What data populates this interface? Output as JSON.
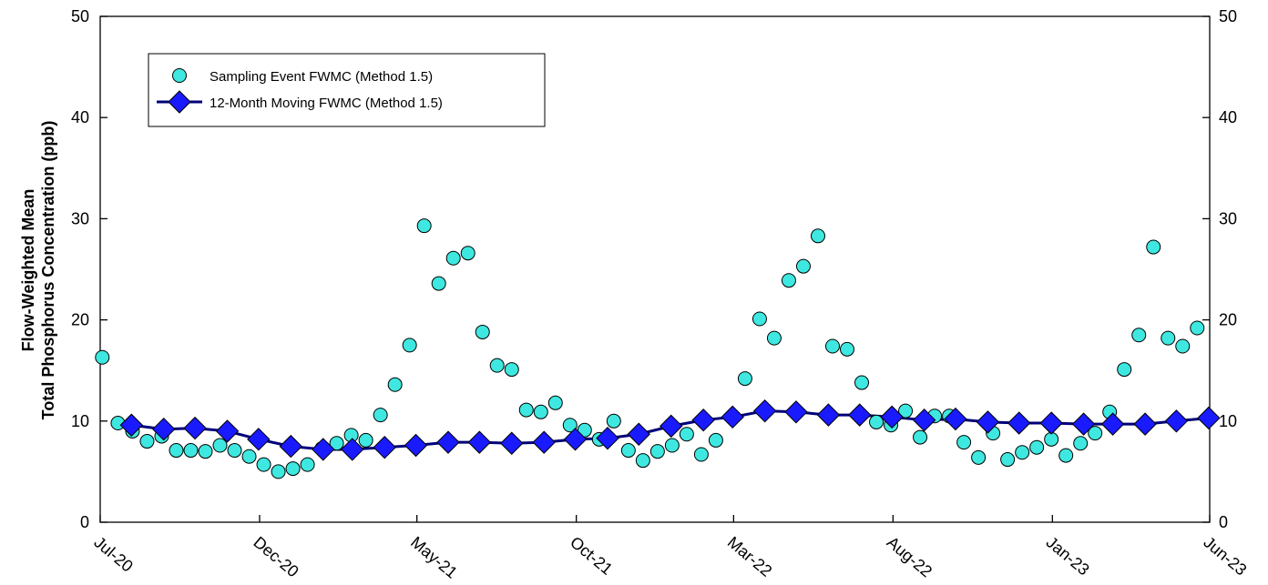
{
  "chart_data": {
    "type": "scatter",
    "title": "",
    "xlabel": "",
    "ylabel_lines": [
      "Flow-Weighted Mean",
      "Total Phosphorus Concentration (ppb)"
    ],
    "ylim": [
      0,
      50
    ],
    "yticks": [
      0,
      10,
      20,
      30,
      40,
      50
    ],
    "xlim": [
      "2020-07-01",
      "2023-06-01"
    ],
    "xticks": [
      {
        "date": "2020-07-01",
        "label": "Jul-20"
      },
      {
        "date": "2020-12-01",
        "label": "Dec-20"
      },
      {
        "date": "2021-05-01",
        "label": "May-21"
      },
      {
        "date": "2021-10-01",
        "label": "Oct-21"
      },
      {
        "date": "2022-03-01",
        "label": "Mar-22"
      },
      {
        "date": "2022-08-01",
        "label": "Aug-22"
      },
      {
        "date": "2023-01-01",
        "label": "Jan-23"
      },
      {
        "date": "2023-06-01",
        "label": "Jun-23"
      }
    ],
    "right_axis_mirrored": true,
    "grid": false,
    "legend_position": "top-left",
    "series": [
      {
        "name": "Sampling Event FWMC (Method 1.5)",
        "style": "markers",
        "marker": "circle",
        "color": "#3ee8e0",
        "points": [
          [
            "2020-07-03",
            16.3
          ],
          [
            "2020-07-18",
            9.8
          ],
          [
            "2020-08-01",
            9.0
          ],
          [
            "2020-08-15",
            8.0
          ],
          [
            "2020-08-29",
            8.5
          ],
          [
            "2020-09-12",
            7.1
          ],
          [
            "2020-09-26",
            7.1
          ],
          [
            "2020-10-10",
            7.0
          ],
          [
            "2020-10-24",
            7.6
          ],
          [
            "2020-11-07",
            7.1
          ],
          [
            "2020-11-21",
            6.5
          ],
          [
            "2020-12-05",
            5.7
          ],
          [
            "2020-12-19",
            5.0
          ],
          [
            "2021-01-02",
            5.3
          ],
          [
            "2021-01-16",
            5.7
          ],
          [
            "2021-01-30",
            7.3
          ],
          [
            "2021-02-13",
            7.8
          ],
          [
            "2021-02-27",
            8.6
          ],
          [
            "2021-03-13",
            8.1
          ],
          [
            "2021-03-27",
            10.6
          ],
          [
            "2021-04-10",
            13.6
          ],
          [
            "2021-04-24",
            17.5
          ],
          [
            "2021-05-08",
            29.3
          ],
          [
            "2021-05-22",
            23.6
          ],
          [
            "2021-06-05",
            26.1
          ],
          [
            "2021-06-19",
            26.6
          ],
          [
            "2021-07-03",
            18.8
          ],
          [
            "2021-07-17",
            15.5
          ],
          [
            "2021-07-31",
            15.1
          ],
          [
            "2021-08-14",
            11.1
          ],
          [
            "2021-08-28",
            10.9
          ],
          [
            "2021-09-11",
            11.8
          ],
          [
            "2021-09-25",
            9.6
          ],
          [
            "2021-10-09",
            9.1
          ],
          [
            "2021-10-23",
            8.2
          ],
          [
            "2021-11-06",
            10.0
          ],
          [
            "2021-11-20",
            7.1
          ],
          [
            "2021-12-04",
            6.1
          ],
          [
            "2021-12-18",
            7.0
          ],
          [
            "2022-01-01",
            7.6
          ],
          [
            "2022-01-15",
            8.7
          ],
          [
            "2022-01-29",
            6.7
          ],
          [
            "2022-02-12",
            8.1
          ],
          [
            "2022-03-12",
            14.2
          ],
          [
            "2022-03-26",
            20.1
          ],
          [
            "2022-04-09",
            18.2
          ],
          [
            "2022-04-23",
            23.9
          ],
          [
            "2022-05-07",
            25.3
          ],
          [
            "2022-05-21",
            28.3
          ],
          [
            "2022-06-04",
            17.4
          ],
          [
            "2022-06-18",
            17.1
          ],
          [
            "2022-07-02",
            13.8
          ],
          [
            "2022-07-16",
            9.9
          ],
          [
            "2022-07-30",
            9.6
          ],
          [
            "2022-08-13",
            11.0
          ],
          [
            "2022-08-27",
            8.4
          ],
          [
            "2022-09-10",
            10.5
          ],
          [
            "2022-09-24",
            10.5
          ],
          [
            "2022-10-08",
            7.9
          ],
          [
            "2022-10-22",
            6.4
          ],
          [
            "2022-11-05",
            8.8
          ],
          [
            "2022-11-19",
            6.2
          ],
          [
            "2022-12-03",
            6.9
          ],
          [
            "2022-12-17",
            7.4
          ],
          [
            "2022-12-31",
            8.2
          ],
          [
            "2023-01-14",
            6.6
          ],
          [
            "2023-01-28",
            7.8
          ],
          [
            "2023-02-11",
            8.8
          ],
          [
            "2023-02-25",
            10.9
          ],
          [
            "2023-03-11",
            15.1
          ],
          [
            "2023-03-25",
            18.5
          ],
          [
            "2023-04-08",
            27.2
          ],
          [
            "2023-04-22",
            18.2
          ],
          [
            "2023-05-06",
            17.4
          ],
          [
            "2023-05-20",
            19.2
          ]
        ]
      },
      {
        "name": "12-Month Moving FWMC (Method 1.5)",
        "style": "line+markers",
        "marker": "diamond",
        "color": "#1a1aff",
        "line_color": "#00007a",
        "points": [
          [
            "2020-07-31",
            9.6
          ],
          [
            "2020-08-31",
            9.2
          ],
          [
            "2020-09-30",
            9.3
          ],
          [
            "2020-10-31",
            9.0
          ],
          [
            "2020-11-30",
            8.2
          ],
          [
            "2020-12-31",
            7.5
          ],
          [
            "2021-01-31",
            7.2
          ],
          [
            "2021-02-28",
            7.2
          ],
          [
            "2021-03-31",
            7.4
          ],
          [
            "2021-04-30",
            7.6
          ],
          [
            "2021-05-31",
            7.9
          ],
          [
            "2021-06-30",
            7.9
          ],
          [
            "2021-07-31",
            7.8
          ],
          [
            "2021-08-31",
            7.9
          ],
          [
            "2021-09-30",
            8.2
          ],
          [
            "2021-10-31",
            8.3
          ],
          [
            "2021-11-30",
            8.7
          ],
          [
            "2021-12-31",
            9.5
          ],
          [
            "2022-01-31",
            10.1
          ],
          [
            "2022-02-28",
            10.4
          ],
          [
            "2022-03-31",
            11.0
          ],
          [
            "2022-04-30",
            10.9
          ],
          [
            "2022-05-31",
            10.6
          ],
          [
            "2022-06-30",
            10.6
          ],
          [
            "2022-07-31",
            10.4
          ],
          [
            "2022-08-31",
            10.1
          ],
          [
            "2022-09-30",
            10.2
          ],
          [
            "2022-10-31",
            9.9
          ],
          [
            "2022-11-30",
            9.8
          ],
          [
            "2022-12-31",
            9.8
          ],
          [
            "2023-01-31",
            9.7
          ],
          [
            "2023-02-28",
            9.7
          ],
          [
            "2023-03-31",
            9.7
          ],
          [
            "2023-04-30",
            10.0
          ],
          [
            "2023-05-31",
            10.3
          ]
        ]
      }
    ]
  }
}
